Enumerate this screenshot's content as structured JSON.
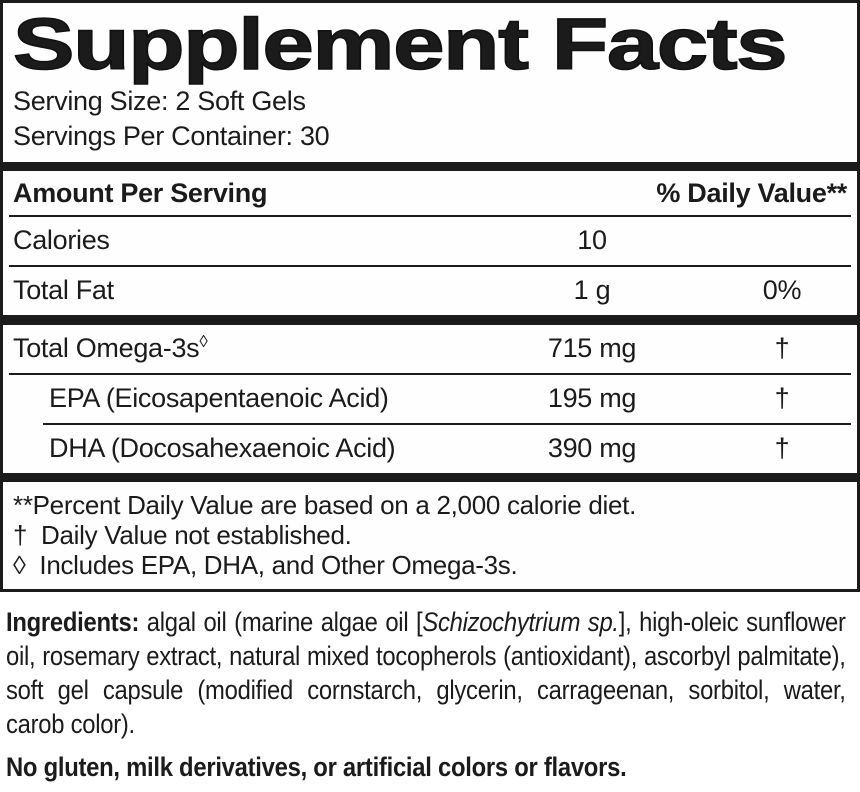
{
  "panel": {
    "title": "Supplement Facts",
    "serving_size": "Serving Size: 2 Soft Gels",
    "servings_per_container": "Servings Per Container: 30",
    "columns": {
      "amount_header": "Amount Per Serving",
      "dv_header": "% Daily Value**"
    },
    "rows": {
      "calories": {
        "name": "Calories",
        "amount": "10",
        "dv": ""
      },
      "total_fat": {
        "name": "Total Fat",
        "amount": "1 g",
        "dv": "0%"
      },
      "total_omega3": {
        "name": "Total Omega-3s",
        "sup": "◊",
        "amount": "715 mg",
        "dv": "†"
      },
      "epa": {
        "name": "EPA (Eicosapentaenoic Acid)",
        "amount": "195 mg",
        "dv": "†"
      },
      "dha": {
        "name": "DHA (Docosahexaenoic Acid)",
        "amount": "390 mg",
        "dv": "†"
      }
    },
    "footnotes": [
      "**Percent Daily Value are based on a 2,000 calorie diet.",
      "†  Daily Value not established.",
      "◊  Includes EPA, DHA, and Other Omega-3s."
    ]
  },
  "ingredients": {
    "lead": "Ingredients: ",
    "part1": "algal oil (marine algae oil [",
    "species": "Schizochytrium sp.",
    "part2": "], high-oleic sunflower oil, rosemary extract, natural mixed tocopherols (antioxidant), ascorbyl palmitate), soft gel capsule (modified cornstarch, glycerin, carrageenan, sorbitol, water, carob color)."
  },
  "allergen_statement": "No gluten, milk derivatives, or artificial colors or flavors.",
  "colors": {
    "text": "#1b1b1b",
    "background": "#ffffff"
  }
}
